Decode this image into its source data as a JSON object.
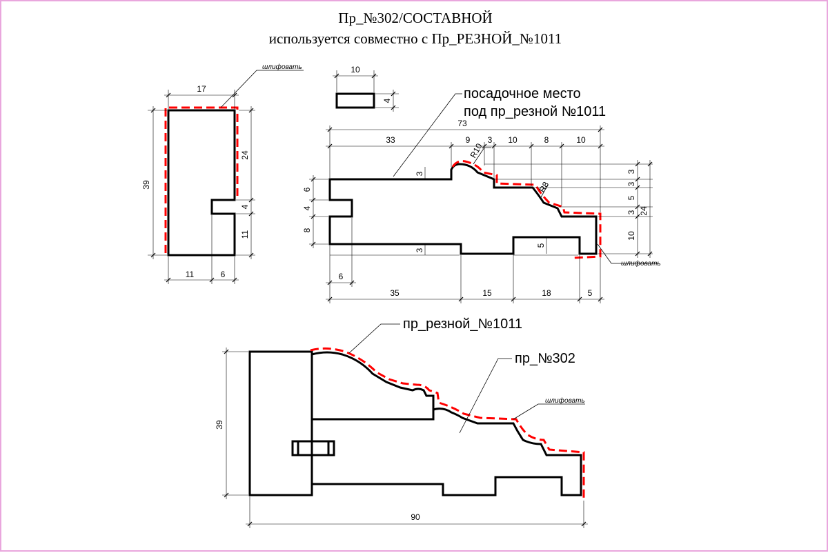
{
  "title_line1": "Пр_№302/СОСТАВНОЙ",
  "title_line2": "используется совместно с Пр_РЕЗНОЙ_№1011",
  "colors": {
    "outline": "#000000",
    "sanding_line": "#ff0000",
    "hatch_blue": "#2b3bd6",
    "hatch_wood": "#9b8f88",
    "frame": "#e9a6dd"
  },
  "left_profile": {
    "dims": {
      "width": "17",
      "height": "39",
      "upper": "24",
      "groove": "4",
      "lower": "11",
      "bottom_left": "11",
      "bottom_right": "6"
    },
    "note": "шлифовать"
  },
  "small_insert": {
    "width": "10",
    "height": "4"
  },
  "main_profile": {
    "callout": [
      "посадочное место",
      "под пр_резной №1011"
    ],
    "top_dims": {
      "overall": "73",
      "d33": "33",
      "d9": "9",
      "d3": "3",
      "d10a": "10",
      "d8": "8",
      "d10b": "10"
    },
    "radii": {
      "r10": "R10",
      "r8": "R8"
    },
    "left_dims": {
      "d6": "6",
      "d4": "4",
      "d8": "8"
    },
    "right_dims": {
      "d3a": "3",
      "d3b": "3",
      "d5": "5",
      "d3c": "3",
      "d10": "10",
      "d24": "24"
    },
    "inner_dims": {
      "top3": "3",
      "bot3": "3",
      "bot5": "5"
    },
    "bottom_dims": {
      "d6": "6",
      "d35": "35",
      "d15": "15",
      "d18": "18",
      "d5": "5"
    },
    "note": "шлифовать"
  },
  "assembly": {
    "callout_carved": "пр_резной_№1011",
    "callout_302": "пр_№302",
    "height": "39",
    "width": "90",
    "note": "шлифовать"
  }
}
